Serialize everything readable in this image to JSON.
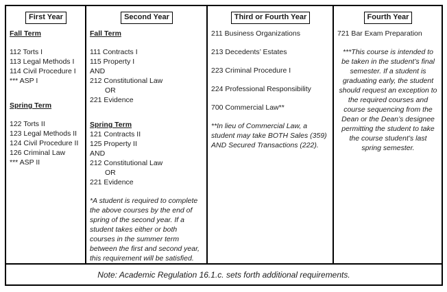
{
  "table": {
    "columns": [
      {
        "title": "First Year",
        "blocks": [
          {
            "type": "heading",
            "text": "Fall Term"
          },
          {
            "type": "blank"
          },
          {
            "type": "line",
            "text": "112 Torts I"
          },
          {
            "type": "line",
            "text": "113 Legal Methods I"
          },
          {
            "type": "line",
            "text": "114 Civil Procedure I"
          },
          {
            "type": "line",
            "text": "*** ASP I"
          },
          {
            "type": "blank"
          },
          {
            "type": "heading",
            "text": "Spring Term"
          },
          {
            "type": "blank"
          },
          {
            "type": "line",
            "text": "122 Torts II"
          },
          {
            "type": "line",
            "text": "123 Legal Methods II"
          },
          {
            "type": "line",
            "text": "124 Civil Procedure II"
          },
          {
            "type": "line",
            "text": "126 Criminal Law"
          },
          {
            "type": "line",
            "text": "*** ASP II"
          }
        ]
      },
      {
        "title": "Second Year",
        "blocks": [
          {
            "type": "heading",
            "text": "Fall Term"
          },
          {
            "type": "blank"
          },
          {
            "type": "line",
            "text": "111 Contracts I"
          },
          {
            "type": "line",
            "text": "115 Property I"
          },
          {
            "type": "line",
            "text": "AND"
          },
          {
            "type": "line",
            "text": "212 Constitutional Law"
          },
          {
            "type": "indent",
            "text": "OR"
          },
          {
            "type": "line",
            "text": "221 Evidence"
          },
          {
            "type": "blank"
          },
          {
            "type": "heading",
            "text": "Spring Term"
          },
          {
            "type": "line",
            "text": "121 Contracts II"
          },
          {
            "type": "line",
            "text": "125 Property II"
          },
          {
            "type": "line",
            "text": "AND"
          },
          {
            "type": "line",
            "text": "212 Constitutional Law"
          },
          {
            "type": "indent",
            "text": "OR"
          },
          {
            "type": "line",
            "text": "221 Evidence"
          },
          {
            "type": "blank"
          },
          {
            "type": "note",
            "text": "*A student is required to complete the above courses by the end of spring of the second year. If a student takes either or both courses in the summer term between the first and second year, this requirement will be satisfied."
          }
        ]
      },
      {
        "title": "Third or Fourth Year",
        "blocks": [
          {
            "type": "line",
            "text": "211 Business Organizations"
          },
          {
            "type": "blank"
          },
          {
            "type": "line",
            "text": "213 Decedents’ Estates"
          },
          {
            "type": "blank"
          },
          {
            "type": "line",
            "text": "223 Criminal Procedure I"
          },
          {
            "type": "blank"
          },
          {
            "type": "line",
            "text": "224 Professional Responsibility"
          },
          {
            "type": "blank"
          },
          {
            "type": "line",
            "text": "700 Commercial Law**"
          },
          {
            "type": "blank"
          },
          {
            "type": "note",
            "text": "**In lieu of Commercial Law, a student may take BOTH Sales (359) AND Secured Transactions (222)."
          }
        ]
      },
      {
        "title": "Fourth Year",
        "blocks": [
          {
            "type": "line",
            "text": "721 Bar Exam Preparation"
          },
          {
            "type": "blank"
          },
          {
            "type": "note-center",
            "text": "***This course is intended to be taken in the student’s final semester.  If a student is graduating early, the student should request an exception to the required courses and course sequencing from the Dean or the Dean’s designee permitting the student to take the course student’s last spring semester."
          }
        ]
      }
    ],
    "footer_note": "Note: Academic Regulation 16.1.c. sets forth additional requirements."
  }
}
